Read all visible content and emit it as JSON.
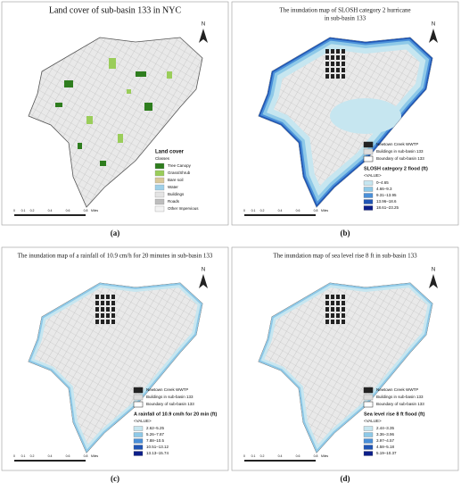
{
  "north": "N",
  "scale_bar": [
    "0",
    "0.1",
    "0.2",
    "0.4",
    "0.6",
    "0.8",
    "Miles"
  ],
  "panels": [
    {
      "title": [
        "Land cover of sub-basin 133 in NYC"
      ],
      "caption": "(a)",
      "legend": {
        "title": "Land cover",
        "subtitle": "Classes",
        "items": [
          {
            "label": "Tree Canopy",
            "color": "#2e7d1e"
          },
          {
            "label": "Grass/Shrub",
            "color": "#9acd5a"
          },
          {
            "label": "Bare soil",
            "color": "#d9c89a"
          },
          {
            "label": "Water",
            "color": "#9fd0e8"
          },
          {
            "label": "Buildings",
            "color": "#e4e4e4"
          },
          {
            "label": "Roads",
            "color": "#bdbdbd"
          },
          {
            "label": "Other Impervious",
            "color": "#f3f3f3"
          }
        ]
      }
    },
    {
      "title": [
        "The inundation map of SLOSH category 2 hurricane",
        "in sub-basin 133"
      ],
      "caption": "(b)",
      "legend": {
        "features": [
          "Newtown Creek WWTP",
          "Buildings in sub-basin 133",
          "Boundary of sub-basin 133"
        ],
        "title": "SLOSH category 2 flood (ft)",
        "subtitle": "<VALUE>",
        "items": [
          {
            "label": "0–4.65",
            "color": "#c6e6f0"
          },
          {
            "label": "4.66–9.3",
            "color": "#8ec9e8"
          },
          {
            "label": "9.31–13.95",
            "color": "#4a90d9"
          },
          {
            "label": "13.96–18.6",
            "color": "#2055b5"
          },
          {
            "label": "18.61–23.25",
            "color": "#0c1e8a"
          }
        ]
      }
    },
    {
      "title": [
        "The inundation map of a rainfall of 10.9 cm/h for 20 minutes in sub-basin 133"
      ],
      "caption": "(c)",
      "legend": {
        "features": [
          "Newtown Creek WWTP",
          "Buildings in sub-basin 133",
          "Boundary of sub-basin 133"
        ],
        "title": "A rainfall of 10.9 cm/h for 20 min (ft)",
        "subtitle": "<VALUE>",
        "items": [
          {
            "label": "2.62–5.25",
            "color": "#c6e6f0"
          },
          {
            "label": "5.26–7.87",
            "color": "#8ec9e8"
          },
          {
            "label": "7.88–10.5",
            "color": "#4a90d9"
          },
          {
            "label": "10.51–13.12",
            "color": "#2055b5"
          },
          {
            "label": "13.13–15.74",
            "color": "#0c1e8a"
          }
        ]
      }
    },
    {
      "title": [
        "The inundation map of sea level rise 8 ft in sub-basin 133"
      ],
      "caption": "(d)",
      "legend": {
        "features": [
          "Newtown Creek WWTP",
          "Buildings in sub-basin 133",
          "Boundary of sub-basin 133"
        ],
        "title": "Sea level rise 8 ft flood (ft)",
        "subtitle": "<VALUE>",
        "items": [
          {
            "label": "2.44–3.35",
            "color": "#c6e6f0"
          },
          {
            "label": "3.36–3.96",
            "color": "#8ec9e8"
          },
          {
            "label": "3.97–4.57",
            "color": "#4a90d9"
          },
          {
            "label": "4.58–5.18",
            "color": "#2055b5"
          },
          {
            "label": "5.19–10.37",
            "color": "#0c1e8a"
          }
        ]
      }
    }
  ]
}
